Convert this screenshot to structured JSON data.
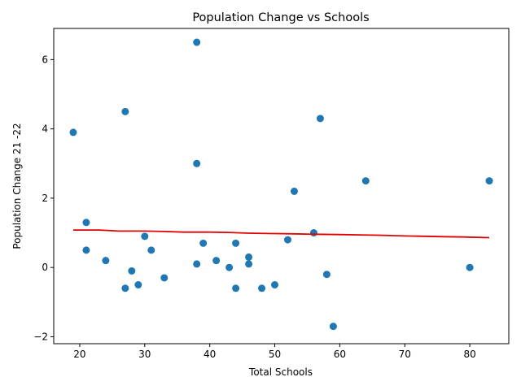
{
  "chart_data": {
    "type": "scatter",
    "title": "Population Change vs Schools",
    "xlabel": "Total Schools",
    "ylabel": "Population Change 21 -22",
    "xlim": [
      16,
      86
    ],
    "ylim": [
      -2.2,
      6.9
    ],
    "x_ticks": [
      20,
      30,
      40,
      50,
      60,
      70,
      80
    ],
    "y_ticks": [
      -2,
      0,
      2,
      4,
      6
    ],
    "grid": false,
    "legend": "none",
    "colors": {
      "points": "#1f77b4",
      "trend": "#e00000"
    },
    "series": [
      {
        "x": [
          38,
          27,
          57,
          19,
          38,
          64,
          83,
          53,
          21,
          56,
          30,
          52,
          21,
          31,
          39,
          44,
          24,
          41,
          38,
          46,
          43,
          46,
          80,
          28,
          58,
          33,
          29,
          50,
          27,
          44,
          48,
          59
        ],
        "y": [
          6.5,
          4.5,
          4.3,
          3.9,
          3.0,
          2.5,
          2.5,
          2.2,
          1.3,
          1.0,
          0.9,
          0.8,
          0.5,
          0.5,
          0.7,
          0.7,
          0.2,
          0.2,
          0.1,
          0.3,
          0.0,
          0.1,
          0.0,
          -0.1,
          -0.2,
          -0.3,
          -0.5,
          -0.5,
          -0.6,
          -0.6,
          -0.6,
          -1.7
        ]
      }
    ],
    "trendline": {
      "x": [
        19,
        23,
        26,
        30,
        33,
        36,
        40,
        43,
        46,
        49,
        53,
        56,
        60,
        63,
        66,
        70,
        73,
        76,
        79,
        83
      ],
      "y": [
        1.08,
        1.08,
        1.05,
        1.05,
        1.04,
        1.02,
        1.02,
        1.01,
        0.99,
        0.98,
        0.97,
        0.96,
        0.95,
        0.94,
        0.93,
        0.91,
        0.9,
        0.89,
        0.88,
        0.86
      ]
    }
  }
}
